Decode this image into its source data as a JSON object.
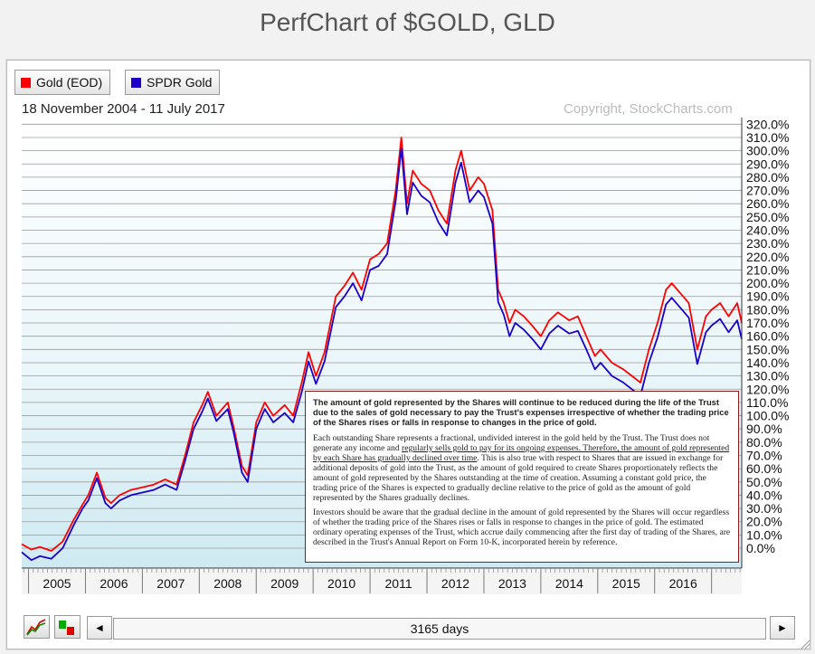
{
  "page_title": "PerfChart of $GOLD, GLD",
  "legend": [
    {
      "label": "Gold (EOD)",
      "color": "#ff0000"
    },
    {
      "label": "SPDR Gold",
      "color": "#1a00c8"
    }
  ],
  "date_range": "18 November 2004 - 11 July 2017",
  "copyright": "Copyright, StockCharts.com",
  "controls": {
    "days_label": "3165 days",
    "left_arrow": "◄",
    "right_arrow": "►",
    "performance_icon": "performance-line-icon",
    "bar_icon": "bar-chart-icon"
  },
  "note": {
    "bold": "The amount of gold represented by the Shares will continue to be reduced during the life of the Trust due to the sales of gold necessary to pay the Trust's expenses irrespective of whether the trading price of the Shares rises or falls in response to changes in the price of gold.",
    "para2_a": "Each outstanding Share represents a fractional, undivided interest in the gold held by the Trust. The Trust does not generate any income and ",
    "para2_u": "regularly sells gold to pay for its ongoing expenses. Therefore, the amount of gold represented by each Share has gradually declined over time",
    "para2_b": ". This is also true with respect to Shares that are issued in exchange for additional deposits of gold into the Trust, as the amount of gold required to create Shares proportionately reflects the amount of gold represented by the Shares outstanding at the time of creation. Assuming a constant gold price, the trading price of the Shares is expected to gradually decline relative to the price of gold as the amount of gold represented by the Shares gradually declines.",
    "para3": "Investors should be aware that the gradual decline in the amount of gold represented by the Shares will occur regardless of whether the trading price of the Shares rises or falls in response to changes in the price of gold. The estimated ordinary operating expenses of the Trust, which accrue daily commencing after the first day of trading of the Shares, are described in the Trust's Annual Report on Form 10-K, incorporated herein by reference."
  },
  "chart_data": {
    "type": "line",
    "ylabel": "",
    "y_unit": "%",
    "ylim": [
      -15,
      325
    ],
    "yticks": [
      0,
      10,
      20,
      30,
      40,
      50,
      60,
      70,
      80,
      90,
      100,
      110,
      120,
      130,
      140,
      150,
      160,
      170,
      180,
      190,
      200,
      210,
      220,
      230,
      240,
      250,
      260,
      270,
      280,
      290,
      300,
      310,
      320
    ],
    "ytick_labels": [
      "0.0%",
      "10.0%",
      "20.0%",
      "30.0%",
      "40.0%",
      "50.0%",
      "60.0%",
      "70.0%",
      "80.0%",
      "90.0%",
      "100.0%",
      "110.0%",
      "120.0%",
      "130.0%",
      "140.0%",
      "150.0%",
      "160.0%",
      "170.0%",
      "180.0%",
      "190.0%",
      "200.0%",
      "210.0%",
      "220.0%",
      "230.0%",
      "240.0%",
      "250.0%",
      "260.0%",
      "270.0%",
      "280.0%",
      "290.0%",
      "300.0%",
      "310.0%",
      "320.0%"
    ],
    "xlim": [
      2004.88,
      2017.53
    ],
    "xticks": [
      2005,
      2006,
      2007,
      2008,
      2009,
      2010,
      2011,
      2012,
      2013,
      2014,
      2015,
      2016
    ],
    "xtick_labels": [
      "2005",
      "2006",
      "2007",
      "2008",
      "2009",
      "2010",
      "2011",
      "2012",
      "2013",
      "2014",
      "2015",
      "2016"
    ],
    "grid": true,
    "legend_position": "top-left",
    "series": [
      {
        "name": "Gold (EOD)",
        "color": "#ff0000",
        "x": [
          2004.88,
          2005.05,
          2005.2,
          2005.4,
          2005.6,
          2005.8,
          2005.95,
          2006.05,
          2006.2,
          2006.35,
          2006.45,
          2006.6,
          2006.8,
          2007.0,
          2007.2,
          2007.4,
          2007.6,
          2007.75,
          2007.9,
          2008.05,
          2008.15,
          2008.3,
          2008.5,
          2008.6,
          2008.75,
          2008.85,
          2009.0,
          2009.15,
          2009.3,
          2009.5,
          2009.65,
          2009.8,
          2009.92,
          2010.05,
          2010.2,
          2010.4,
          2010.55,
          2010.7,
          2010.85,
          2011.0,
          2011.15,
          2011.3,
          2011.45,
          2011.55,
          2011.65,
          2011.75,
          2011.9,
          2012.05,
          2012.2,
          2012.35,
          2012.5,
          2012.6,
          2012.75,
          2012.9,
          2013.0,
          2013.15,
          2013.25,
          2013.35,
          2013.45,
          2013.55,
          2013.7,
          2013.85,
          2014.0,
          2014.15,
          2014.3,
          2014.5,
          2014.65,
          2014.8,
          2014.95,
          2015.05,
          2015.25,
          2015.45,
          2015.6,
          2015.75,
          2015.9,
          2016.05,
          2016.2,
          2016.3,
          2016.5,
          2016.6,
          2016.75,
          2016.9,
          2017.0,
          2017.15,
          2017.3,
          2017.45,
          2017.53
        ],
        "values": [
          3,
          -1,
          1,
          -2,
          5,
          22,
          33,
          40,
          57,
          38,
          34,
          40,
          44,
          46,
          48,
          52,
          48,
          70,
          95,
          108,
          118,
          100,
          110,
          92,
          62,
          55,
          95,
          110,
          100,
          108,
          100,
          125,
          148,
          130,
          148,
          190,
          198,
          208,
          195,
          218,
          222,
          230,
          270,
          310,
          260,
          285,
          275,
          270,
          255,
          245,
          285,
          300,
          270,
          280,
          275,
          255,
          195,
          185,
          170,
          180,
          175,
          168,
          160,
          172,
          178,
          172,
          175,
          160,
          145,
          150,
          140,
          135,
          130,
          125,
          150,
          170,
          195,
          200,
          190,
          185,
          150,
          175,
          180,
          185,
          175,
          185,
          170
        ]
      },
      {
        "name": "SPDR Gold",
        "color": "#1a00c8",
        "x": [
          2004.88,
          2005.05,
          2005.2,
          2005.4,
          2005.6,
          2005.8,
          2005.95,
          2006.05,
          2006.2,
          2006.35,
          2006.45,
          2006.6,
          2006.8,
          2007.0,
          2007.2,
          2007.4,
          2007.6,
          2007.75,
          2007.9,
          2008.05,
          2008.15,
          2008.3,
          2008.5,
          2008.6,
          2008.75,
          2008.85,
          2009.0,
          2009.15,
          2009.3,
          2009.5,
          2009.65,
          2009.8,
          2009.92,
          2010.05,
          2010.2,
          2010.4,
          2010.55,
          2010.7,
          2010.85,
          2011.0,
          2011.15,
          2011.3,
          2011.45,
          2011.55,
          2011.65,
          2011.75,
          2011.9,
          2012.05,
          2012.2,
          2012.35,
          2012.5,
          2012.6,
          2012.75,
          2012.9,
          2013.0,
          2013.15,
          2013.25,
          2013.35,
          2013.45,
          2013.55,
          2013.7,
          2013.85,
          2014.0,
          2014.15,
          2014.3,
          2014.5,
          2014.65,
          2014.8,
          2014.95,
          2015.05,
          2015.25,
          2015.45,
          2015.6,
          2015.75,
          2015.9,
          2016.05,
          2016.2,
          2016.3,
          2016.5,
          2016.6,
          2016.75,
          2016.9,
          2017.0,
          2017.15,
          2017.3,
          2017.45,
          2017.53
        ],
        "values": [
          -3,
          -9,
          -6,
          -8,
          0,
          18,
          30,
          36,
          53,
          34,
          30,
          36,
          40,
          42,
          44,
          48,
          44,
          66,
          90,
          103,
          113,
          96,
          105,
          88,
          57,
          50,
          90,
          105,
          95,
          102,
          95,
          118,
          141,
          124,
          141,
          182,
          190,
          200,
          187,
          210,
          213,
          222,
          262,
          302,
          252,
          276,
          266,
          261,
          246,
          236,
          276,
          291,
          261,
          270,
          265,
          245,
          186,
          176,
          160,
          170,
          165,
          158,
          150,
          162,
          168,
          162,
          164,
          150,
          135,
          140,
          130,
          125,
          120,
          115,
          140,
          159,
          184,
          189,
          179,
          174,
          139,
          163,
          168,
          173,
          163,
          172,
          158
        ]
      }
    ]
  }
}
